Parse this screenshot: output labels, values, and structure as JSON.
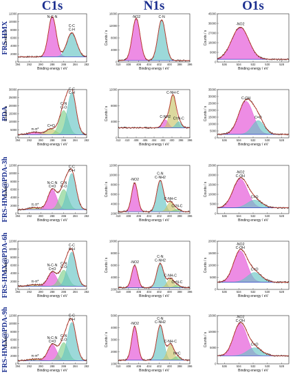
{
  "figure": {
    "column_titles": [
      "C1s",
      "N1s",
      "O1s"
    ],
    "row_labels": [
      "FRS-HMX",
      "PDA",
      "FRS-HMX@PDA-3h",
      "FRS-HMX@PDA-6h",
      "FRS-HMX@PDA-9h"
    ],
    "xlabel": "Binding energy / eV",
    "ylabel": "Counts / s"
  },
  "colors": {
    "raw": "#222222",
    "envelope": "#c0392b",
    "background": "#3346c8",
    "pink": "#e34fd6",
    "green": "#7fcf8a",
    "teal": "#67c4c4",
    "olive": "#c9c46a",
    "text": "#111111",
    "title": "#1a2e8f"
  },
  "chart_data": [
    {
      "type": "line",
      "name": "C1s FRS-HMX",
      "xlim": [
        294,
        282
      ],
      "xticks": [
        294,
        292,
        290,
        288,
        286,
        284,
        282
      ],
      "ylim": [
        0,
        12000
      ],
      "yticks": [
        0,
        2000,
        4000,
        6000,
        8000,
        10000,
        12000
      ],
      "baseline": 1300,
      "peaks": [
        {
          "label": "N-C-N",
          "center": 288.0,
          "height": 10000,
          "fwhm": 1.6,
          "color": "pink"
        },
        {
          "label": "C-C C-H",
          "center": 284.6,
          "height": 6000,
          "fwhm": 2.0,
          "color": "teal"
        }
      ]
    },
    {
      "type": "line",
      "name": "N1s FRS-HMX",
      "xlim": [
        410,
        396
      ],
      "xticks": [
        410,
        408,
        406,
        404,
        402,
        400,
        398,
        396
      ],
      "ylim": [
        0,
        16000
      ],
      "yticks": [
        0,
        4000,
        8000,
        12000,
        16000
      ],
      "baseline": 500,
      "peaks": [
        {
          "label": "-NO2",
          "center": 406.5,
          "height": 14000,
          "fwhm": 1.8,
          "color": "pink"
        },
        {
          "label": "C-N",
          "center": 401.5,
          "height": 13500,
          "fwhm": 1.8,
          "color": "teal"
        }
      ]
    },
    {
      "type": "line",
      "name": "O1s FRS-HMX",
      "xlim": [
        537,
        527
      ],
      "xticks": [
        536,
        534,
        532,
        530,
        528
      ],
      "ylim": [
        0,
        45000
      ],
      "yticks": [
        0,
        9000,
        18000,
        27000,
        36000,
        45000
      ],
      "baseline": 2500,
      "peaks": [
        {
          "label": "-NO2",
          "center": 533.8,
          "height": 30000,
          "fwhm": 2.8,
          "color": "pink"
        }
      ]
    },
    {
      "type": "line",
      "name": "C1s PDA",
      "xlim": [
        294,
        282
      ],
      "xticks": [
        294,
        292,
        290,
        288,
        286,
        284,
        282
      ],
      "ylim": [
        0,
        30000
      ],
      "yticks": [
        0,
        5000,
        10000,
        15000,
        20000,
        25000,
        30000
      ],
      "baseline": 2000,
      "peaks": [
        {
          "label": "π-π*",
          "center": 291.0,
          "height": 1500,
          "fwhm": 2.5,
          "color": "pink"
        },
        {
          "label": "C=O",
          "center": 288.2,
          "height": 3500,
          "fwhm": 2.0,
          "color": "olive"
        },
        {
          "label": "C-N C-O",
          "center": 286.0,
          "height": 15000,
          "fwhm": 1.8,
          "color": "green"
        },
        {
          "label": "C-C C-H",
          "center": 284.6,
          "height": 26000,
          "fwhm": 1.8,
          "color": "teal"
        }
      ]
    },
    {
      "type": "line",
      "name": "N1s PDA",
      "xlim": [
        412,
        396
      ],
      "xticks": [
        412,
        410,
        408,
        406,
        404,
        402,
        400,
        398,
        396
      ],
      "ylim": [
        0,
        12000
      ],
      "yticks": [
        0,
        4000,
        8000,
        12000
      ],
      "baseline": 2500,
      "peaks": [
        {
          "label": "C-NH2",
          "center": 401.5,
          "height": 2000,
          "fwhm": 1.6,
          "color": "pink"
        },
        {
          "label": "C-NH-C",
          "center": 399.8,
          "height": 8000,
          "fwhm": 1.6,
          "color": "olive"
        },
        {
          "label": "C=N-C",
          "center": 398.5,
          "height": 1500,
          "fwhm": 1.5,
          "color": "teal"
        }
      ]
    },
    {
      "type": "line",
      "name": "O1s PDA",
      "xlim": [
        537,
        527
      ],
      "xticks": [
        536,
        534,
        532,
        530,
        528
      ],
      "ylim": [
        0,
        35000
      ],
      "yticks": [
        0,
        5000,
        10000,
        15000,
        20000,
        25000,
        30000,
        35000
      ],
      "baseline": 2500,
      "peaks": [
        {
          "label": "C-OH",
          "center": 533.0,
          "height": 24000,
          "fwhm": 2.4,
          "color": "pink"
        },
        {
          "label": "C=O",
          "center": 531.3,
          "height": 10000,
          "fwhm": 2.0,
          "color": "teal"
        }
      ]
    },
    {
      "type": "line",
      "name": "C1s FRS-HMX@PDA-3h",
      "xlim": [
        294,
        282
      ],
      "xticks": [
        294,
        292,
        290,
        288,
        286,
        284,
        282
      ],
      "ylim": [
        0,
        12000
      ],
      "yticks": [
        0,
        2000,
        4000,
        6000,
        8000,
        10000,
        12000
      ],
      "baseline": 1000,
      "peaks": [
        {
          "label": "π-π*",
          "center": 291.0,
          "height": 500,
          "fwhm": 2.5,
          "color": "olive"
        },
        {
          "label": "N-C-N C=O",
          "center": 288.0,
          "height": 5000,
          "fwhm": 1.8,
          "color": "pink"
        },
        {
          "label": "C-N C-O",
          "center": 286.0,
          "height": 5000,
          "fwhm": 1.8,
          "color": "green"
        },
        {
          "label": "C-C C-H",
          "center": 284.6,
          "height": 9000,
          "fwhm": 1.8,
          "color": "teal"
        }
      ]
    },
    {
      "type": "line",
      "name": "N1s FRS-HMX@PDA-3h",
      "xlim": [
        410,
        396
      ],
      "xticks": [
        410,
        408,
        406,
        404,
        402,
        400,
        398,
        396
      ],
      "ylim": [
        2000,
        12000
      ],
      "yticks": [
        2000,
        4000,
        6000,
        8000,
        10000,
        12000
      ],
      "baseline": 2400,
      "peaks": [
        {
          "label": "-NO2",
          "center": 406.8,
          "height": 6000,
          "fwhm": 1.4,
          "color": "pink"
        },
        {
          "label": "C-N C-NH2",
          "center": 401.8,
          "height": 6500,
          "fwhm": 1.6,
          "color": "teal"
        },
        {
          "label": "C-NH-C",
          "center": 399.8,
          "height": 2000,
          "fwhm": 1.5,
          "color": "olive"
        },
        {
          "label": "C=N-C",
          "center": 398.5,
          "height": 500,
          "fwhm": 1.5,
          "color": "green"
        }
      ]
    },
    {
      "type": "line",
      "name": "O1s FRS-HMX@PDA-3h",
      "xlim": [
        537,
        527
      ],
      "xticks": [
        536,
        534,
        532,
        530,
        528
      ],
      "ylim": [
        0,
        25000
      ],
      "yticks": [
        0,
        5000,
        10000,
        15000,
        20000,
        25000
      ],
      "baseline": 3000,
      "peaks": [
        {
          "label": "-NO2 C-OH",
          "center": 533.8,
          "height": 15000,
          "fwhm": 2.4,
          "color": "pink"
        },
        {
          "label": "C=O",
          "center": 531.8,
          "height": 4000,
          "fwhm": 2.4,
          "color": "teal"
        }
      ]
    },
    {
      "type": "line",
      "name": "C1s FRS-HMX@PDA-6h",
      "xlim": [
        294,
        282
      ],
      "xticks": [
        294,
        292,
        290,
        288,
        286,
        284,
        282
      ],
      "ylim": [
        0,
        12000
      ],
      "yticks": [
        0,
        2000,
        4000,
        6000,
        8000,
        10000,
        12000
      ],
      "baseline": 800,
      "peaks": [
        {
          "label": "π-π*",
          "center": 291.0,
          "height": 400,
          "fwhm": 2.5,
          "color": "olive"
        },
        {
          "label": "N-C-N C=O",
          "center": 288.0,
          "height": 3500,
          "fwhm": 1.8,
          "color": "pink"
        },
        {
          "label": "C-N C-O",
          "center": 286.0,
          "height": 4000,
          "fwhm": 1.8,
          "color": "green"
        },
        {
          "label": "C-C C-H",
          "center": 284.6,
          "height": 8500,
          "fwhm": 1.8,
          "color": "teal"
        }
      ]
    },
    {
      "type": "line",
      "name": "N1s FRS-HMX@PDA-6h",
      "xlim": [
        410,
        396
      ],
      "xticks": [
        410,
        408,
        406,
        404,
        402,
        400,
        398,
        396
      ],
      "ylim": [
        2000,
        10000
      ],
      "yticks": [
        2000,
        4000,
        6000,
        8000,
        10000
      ],
      "baseline": 2300,
      "peaks": [
        {
          "label": "-NO2",
          "center": 406.8,
          "height": 3700,
          "fwhm": 1.4,
          "color": "pink"
        },
        {
          "label": "C-N C-NH2",
          "center": 401.8,
          "height": 4000,
          "fwhm": 1.6,
          "color": "teal"
        },
        {
          "label": "C-NH-C",
          "center": 399.8,
          "height": 1500,
          "fwhm": 1.5,
          "color": "olive"
        },
        {
          "label": "C=N-C",
          "center": 398.5,
          "height": 400,
          "fwhm": 1.5,
          "color": "green"
        }
      ]
    },
    {
      "type": "line",
      "name": "O1s FRS-HMX@PDA-6h",
      "xlim": [
        537,
        527
      ],
      "xticks": [
        536,
        534,
        532,
        530,
        528
      ],
      "ylim": [
        0,
        20000
      ],
      "yticks": [
        0,
        5000,
        10000,
        15000,
        20000
      ],
      "baseline": 3000,
      "peaks": [
        {
          "label": "-NO2 C-OH",
          "center": 533.8,
          "height": 13000,
          "fwhm": 2.2,
          "color": "pink"
        },
        {
          "label": "C=O",
          "center": 531.8,
          "height": 4000,
          "fwhm": 2.4,
          "color": "teal"
        }
      ]
    },
    {
      "type": "line",
      "name": "C1s FRS-HMX@PDA-9h",
      "xlim": [
        294,
        282
      ],
      "xticks": [
        294,
        292,
        290,
        288,
        286,
        284,
        282
      ],
      "ylim": [
        0,
        12000
      ],
      "yticks": [
        0,
        2000,
        4000,
        6000,
        8000,
        10000,
        12000
      ],
      "baseline": 800,
      "peaks": [
        {
          "label": "π-π*",
          "center": 291.0,
          "height": 400,
          "fwhm": 2.5,
          "color": "olive"
        },
        {
          "label": "N-C-N C=O",
          "center": 288.0,
          "height": 4000,
          "fwhm": 1.8,
          "color": "pink"
        },
        {
          "label": "C-N C-O",
          "center": 286.0,
          "height": 4500,
          "fwhm": 1.8,
          "color": "green"
        },
        {
          "label": "C-C C-H",
          "center": 284.6,
          "height": 9500,
          "fwhm": 1.8,
          "color": "teal"
        }
      ]
    },
    {
      "type": "line",
      "name": "N1s FRS-HMX@PDA-9h",
      "xlim": [
        410,
        396
      ],
      "xticks": [
        410,
        408,
        406,
        404,
        402,
        400,
        398,
        396
      ],
      "ylim": [
        1000,
        5000
      ],
      "yticks": [
        1000,
        2000,
        3000,
        4000,
        5000
      ],
      "baseline": 1300,
      "peaks": [
        {
          "label": "-NO2",
          "center": 406.8,
          "height": 2800,
          "fwhm": 1.4,
          "color": "pink"
        },
        {
          "label": "C-N C-NH2",
          "center": 401.8,
          "height": 2900,
          "fwhm": 1.6,
          "color": "teal"
        },
        {
          "label": "C-NH-C",
          "center": 399.8,
          "height": 1300,
          "fwhm": 1.5,
          "color": "olive"
        },
        {
          "label": "N=C",
          "center": 398.5,
          "height": 300,
          "fwhm": 1.5,
          "color": "green"
        }
      ]
    },
    {
      "type": "line",
      "name": "O1s FRS-HMX@PDA-9h",
      "xlim": [
        537,
        527
      ],
      "xticks": [
        536,
        534,
        532,
        530,
        528
      ],
      "ylim": [
        0,
        15000
      ],
      "yticks": [
        0,
        5000,
        10000,
        15000
      ],
      "baseline": 2500,
      "peaks": [
        {
          "label": "-NO2 C-OH",
          "center": 533.8,
          "height": 10000,
          "fwhm": 2.2,
          "color": "pink"
        },
        {
          "label": "C=O",
          "center": 531.8,
          "height": 2500,
          "fwhm": 2.4,
          "color": "teal"
        }
      ]
    }
  ]
}
